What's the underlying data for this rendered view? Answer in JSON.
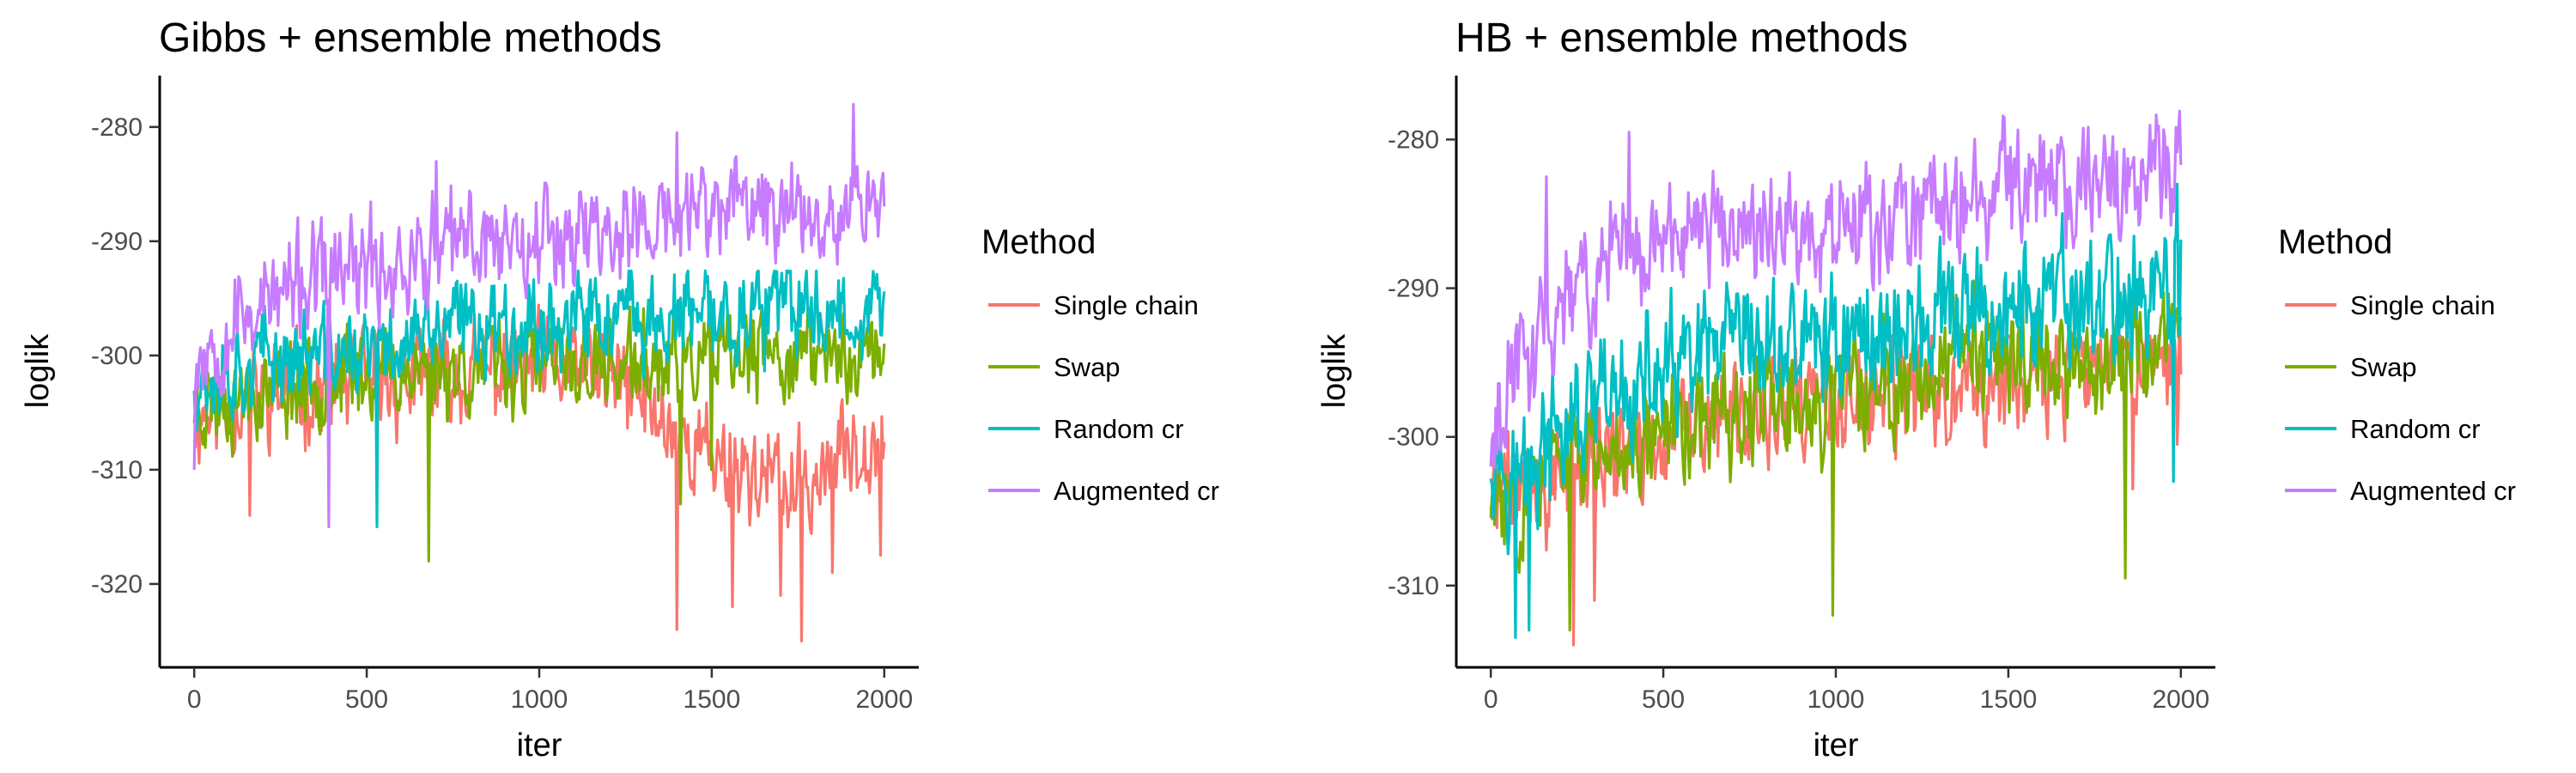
{
  "chart_data": [
    {
      "type": "line",
      "title": "Gibbs + ensemble methods",
      "xlabel": "iter",
      "ylabel": "loglik",
      "xlim": [
        -100,
        2100
      ],
      "ylim": [
        -327.3,
        -275.5
      ],
      "xticks": [
        0,
        500,
        1000,
        1500,
        2000
      ],
      "yticks": [
        -280,
        -290,
        -300,
        -310,
        -320
      ],
      "legend_title": "Method",
      "legend_position": "right",
      "grid": false,
      "series": [
        {
          "name": "Single chain",
          "color": "#F8766D",
          "seed": 11,
          "points": [
            [
              0,
              -305
            ],
            [
              300,
              -303
            ],
            [
              700,
              -302
            ],
            [
              1000,
              -301
            ],
            [
              1200,
              -302
            ],
            [
              1300,
              -304
            ],
            [
              1450,
              -308
            ],
            [
              1600,
              -310
            ],
            [
              1750,
              -312
            ],
            [
              1900,
              -308
            ],
            [
              2000,
              -306
            ]
          ],
          "amp": 3.2,
          "extremes": [
            [
              160,
              -314
            ],
            [
              1400,
              -324
            ],
            [
              1760,
              -325
            ],
            [
              1560,
              -322
            ],
            [
              1700,
              -321
            ],
            [
              1990,
              -317.5
            ],
            [
              1850,
              -319
            ]
          ]
        },
        {
          "name": "Swap",
          "color": "#7CAE00",
          "seed": 23,
          "points": [
            [
              0,
              -304
            ],
            [
              400,
              -302
            ],
            [
              700,
              -301
            ],
            [
              1000,
              -301
            ],
            [
              1400,
              -301
            ],
            [
              1700,
              -300
            ],
            [
              2000,
              -300
            ]
          ],
          "amp": 3.0,
          "extremes": [
            [
              680,
              -318
            ],
            [
              1410,
              -313
            ],
            [
              1500,
              -310
            ]
          ]
        },
        {
          "name": "Random cr",
          "color": "#00BFC4",
          "seed": 37,
          "points": [
            [
              0,
              -302
            ],
            [
              250,
              -300
            ],
            [
              500,
              -300
            ],
            [
              800,
              -297
            ],
            [
              1100,
              -297
            ],
            [
              1400,
              -297
            ],
            [
              1700,
              -296
            ],
            [
              2000,
              -296
            ]
          ],
          "amp": 3.0,
          "cap": -292.6,
          "extremes": [
            [
              390,
              -312
            ],
            [
              530,
              -315
            ]
          ]
        },
        {
          "name": "Augmented cr",
          "color": "#C77CFF",
          "seed": 53,
          "points": [
            [
              0,
              -300
            ],
            [
              150,
              -296
            ],
            [
              400,
              -293
            ],
            [
              600,
              -292
            ],
            [
              800,
              -290
            ],
            [
              1000,
              -289
            ],
            [
              1300,
              -289
            ],
            [
              1500,
              -287
            ],
            [
              1800,
              -287
            ],
            [
              2000,
              -286
            ]
          ],
          "amp": 3.4,
          "extremes": [
            [
              390,
              -315
            ],
            [
              1400,
              -280.5
            ],
            [
              1910,
              -278
            ],
            [
              700,
              -283
            ],
            [
              0,
              -310
            ]
          ]
        }
      ]
    },
    {
      "type": "line",
      "title": "HB + ensemble methods",
      "xlabel": "iter",
      "ylabel": "loglik",
      "xlim": [
        -100,
        2100
      ],
      "ylim": [
        -315.5,
        -275.7
      ],
      "xticks": [
        0,
        500,
        1000,
        1500,
        2000
      ],
      "yticks": [
        -280,
        -290,
        -300,
        -310
      ],
      "legend_title": "Method",
      "legend_position": "right",
      "grid": false,
      "series": [
        {
          "name": "Single chain",
          "color": "#F8766D",
          "seed": 71,
          "points": [
            [
              0,
              -304
            ],
            [
              300,
              -302
            ],
            [
              600,
              -299
            ],
            [
              1000,
              -298
            ],
            [
              1300,
              -297
            ],
            [
              1600,
              -296
            ],
            [
              2000,
              -295
            ]
          ],
          "amp": 2.8,
          "cap": -293.2,
          "extremes": [
            [
              240,
              -314
            ],
            [
              300,
              -311
            ],
            [
              1860,
              -303.5
            ],
            [
              1990,
              -300.5
            ],
            [
              1995,
              -290
            ]
          ]
        },
        {
          "name": "Swap",
          "color": "#7CAE00",
          "seed": 83,
          "points": [
            [
              0,
              -305
            ],
            [
              200,
              -302
            ],
            [
              500,
              -299
            ],
            [
              900,
              -298
            ],
            [
              1200,
              -296
            ],
            [
              1500,
              -295
            ],
            [
              1800,
              -295
            ],
            [
              2000,
              -294
            ]
          ],
          "amp": 2.8,
          "extremes": [
            [
              990,
              -312
            ],
            [
              1840,
              -309.5
            ],
            [
              230,
              -313
            ],
            [
              1400,
              -289.5
            ]
          ]
        },
        {
          "name": "Random cr",
          "color": "#00BFC4",
          "seed": 97,
          "points": [
            [
              0,
              -300
            ],
            [
              80,
              -303
            ],
            [
              200,
              -300
            ],
            [
              500,
              -296
            ],
            [
              800,
              -294
            ],
            [
              1100,
              -293
            ],
            [
              1400,
              -292
            ],
            [
              1700,
              -291
            ],
            [
              2000,
              -290
            ]
          ],
          "amp": 3.2,
          "extremes": [
            [
              70,
              -313.5
            ],
            [
              110,
              -313
            ],
            [
              1990,
              -283
            ],
            [
              1980,
              -303
            ]
          ]
        },
        {
          "name": "Augmented cr",
          "color": "#C77CFF",
          "seed": 113,
          "points": [
            [
              0,
              -299
            ],
            [
              60,
              -297
            ],
            [
              150,
              -292
            ],
            [
              400,
              -287
            ],
            [
              700,
              -286
            ],
            [
              1000,
              -286
            ],
            [
              1300,
              -285
            ],
            [
              1500,
              -283
            ],
            [
              1800,
              -283
            ],
            [
              2000,
              -282
            ]
          ],
          "amp": 2.8,
          "cap": -277.3,
          "extremes": [
            [
              160,
              -282.5
            ],
            [
              0,
              -302
            ],
            [
              400,
              -279.5
            ]
          ]
        }
      ]
    }
  ]
}
